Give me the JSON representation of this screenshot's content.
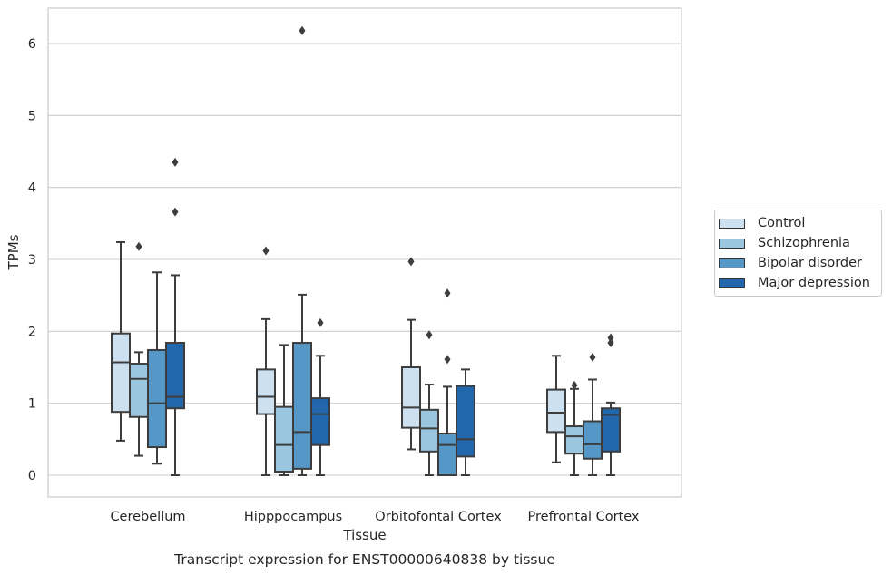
{
  "chart_data": {
    "type": "box",
    "title": "Transcript expression for ENST00000640838 by tissue",
    "xlabel": "Tissue",
    "ylabel": "TPMs",
    "ylim": [
      -0.3,
      6.5
    ],
    "yticks": [
      "0",
      "1",
      "2",
      "3",
      "4",
      "5",
      "6"
    ],
    "grid": true,
    "legend_position": "right",
    "categories": [
      "Cerebellum",
      "Hipppocampus",
      "Orbitofontal Cortex",
      "Prefrontal Cortex"
    ],
    "series": [
      {
        "name": "Control",
        "color": "#cde0f0",
        "boxes": [
          {
            "whislo": 0.48,
            "q1": 0.88,
            "med": 1.57,
            "q3": 1.97,
            "whishi": 3.24,
            "fliers": []
          },
          {
            "whislo": 0.0,
            "q1": 0.85,
            "med": 1.09,
            "q3": 1.47,
            "whishi": 2.17,
            "fliers": [
              3.12
            ]
          },
          {
            "whislo": 0.36,
            "q1": 0.66,
            "med": 0.94,
            "q3": 1.5,
            "whishi": 2.16,
            "fliers": [
              2.97
            ]
          },
          {
            "whislo": 0.18,
            "q1": 0.6,
            "med": 0.87,
            "q3": 1.19,
            "whishi": 1.66,
            "fliers": []
          }
        ]
      },
      {
        "name": "Schizophrenia",
        "color": "#9bc6e0",
        "boxes": [
          {
            "whislo": 0.27,
            "q1": 0.81,
            "med": 1.34,
            "q3": 1.55,
            "whishi": 1.71,
            "fliers": [
              3.18
            ]
          },
          {
            "whislo": 0.0,
            "q1": 0.05,
            "med": 0.42,
            "q3": 0.95,
            "whishi": 1.81,
            "fliers": []
          },
          {
            "whislo": 0.0,
            "q1": 0.33,
            "med": 0.65,
            "q3": 0.91,
            "whishi": 1.26,
            "fliers": [
              1.95
            ]
          },
          {
            "whislo": 0.0,
            "q1": 0.3,
            "med": 0.54,
            "q3": 0.68,
            "whishi": 1.2,
            "fliers": [
              1.25
            ]
          }
        ]
      },
      {
        "name": "Bipolar disorder",
        "color": "#5598c7",
        "boxes": [
          {
            "whislo": 0.16,
            "q1": 0.39,
            "med": 1.0,
            "q3": 1.74,
            "whishi": 2.82,
            "fliers": []
          },
          {
            "whislo": 0.0,
            "q1": 0.09,
            "med": 0.6,
            "q3": 1.84,
            "whishi": 2.51,
            "fliers": [
              6.18
            ]
          },
          {
            "whislo": 0.0,
            "q1": 0.0,
            "med": 0.42,
            "q3": 0.58,
            "whishi": 1.23,
            "fliers": [
              2.53,
              1.61
            ]
          },
          {
            "whislo": 0.0,
            "q1": 0.23,
            "med": 0.43,
            "q3": 0.75,
            "whishi": 1.33,
            "fliers": [
              1.64
            ]
          }
        ]
      },
      {
        "name": "Major depression",
        "color": "#2266ab",
        "boxes": [
          {
            "whislo": 0.0,
            "q1": 0.93,
            "med": 1.09,
            "q3": 1.84,
            "whishi": 2.78,
            "fliers": [
              4.35,
              3.66
            ]
          },
          {
            "whislo": 0.0,
            "q1": 0.42,
            "med": 0.85,
            "q3": 1.07,
            "whishi": 1.66,
            "fliers": [
              2.12
            ]
          },
          {
            "whislo": 0.0,
            "q1": 0.26,
            "med": 0.5,
            "q3": 1.24,
            "whishi": 1.47,
            "fliers": []
          },
          {
            "whislo": 0.0,
            "q1": 0.33,
            "med": 0.84,
            "q3": 0.93,
            "whishi": 1.01,
            "fliers": [
              1.91,
              1.84
            ]
          }
        ]
      }
    ]
  }
}
